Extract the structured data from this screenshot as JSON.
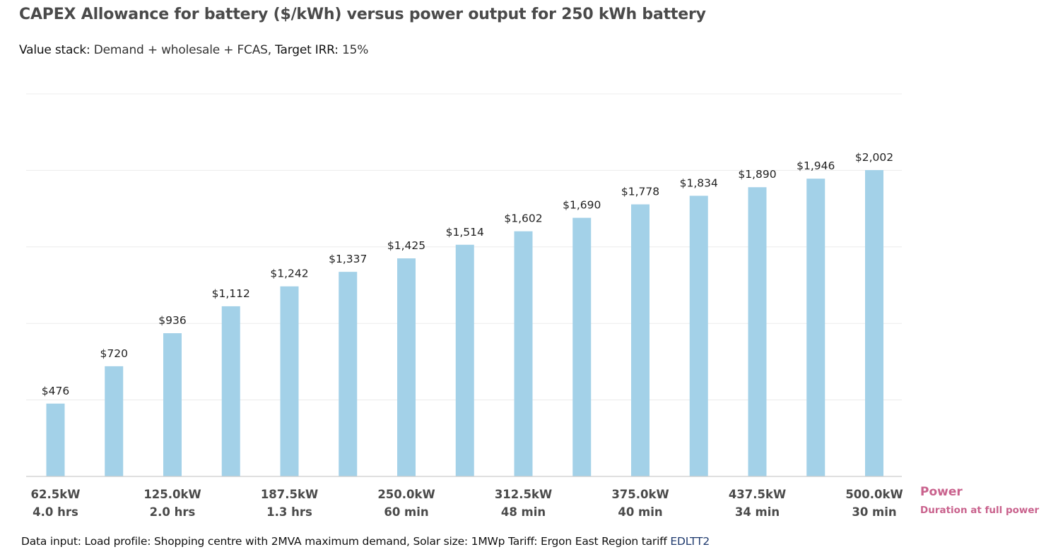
{
  "header": {
    "title": "CAPEX Allowance for battery ($/kWh) versus power output for 250 kWh battery",
    "subtitle_label1": "Value stack:",
    "subtitle_value1": " Demand + wholesale + FCAS, ",
    "subtitle_label2": "Target IRR:",
    "subtitle_value2": " 15%"
  },
  "footer": {
    "text": "Data input: Load profile: Shopping centre with 2MVA maximum demand, Solar size: 1MWp Tariff: Ergon East Region tariff ",
    "link_text": "EDLTT2"
  },
  "axis_legend": {
    "primary": "Power",
    "secondary": "Duration at full power"
  },
  "colors": {
    "bar": "#a3d1e8",
    "grid": "#ececec",
    "axis": "#cccccc",
    "legend_accent": "#c9628d"
  },
  "chart_data": {
    "type": "bar",
    "title": "CAPEX Allowance for battery ($/kWh) versus power output for 250 kWh battery",
    "xlabel": "Power",
    "xlabel_secondary": "Duration at full power",
    "ylabel": "",
    "ylim": [
      0,
      2500
    ],
    "grid": true,
    "categories": [
      "",
      "",
      "",
      "",
      "",
      "",
      "",
      "",
      "",
      "",
      "",
      "",
      "",
      "",
      ""
    ],
    "values": [
      476,
      720,
      936,
      1112,
      1242,
      1337,
      1425,
      1514,
      1602,
      1690,
      1778,
      1834,
      1890,
      1946,
      2002
    ],
    "data_labels": [
      "$476",
      "$720",
      "$936",
      "$1,112",
      "$1,242",
      "$1,337",
      "$1,425",
      "$1,514",
      "$1,602",
      "$1,690",
      "$1,778",
      "$1,834",
      "$1,890",
      "$1,946",
      "$2,002"
    ],
    "tick_labels": [
      {
        "index": 0,
        "power": "62.5kW",
        "duration": "4.0 hrs"
      },
      {
        "index": 2,
        "power": "125.0kW",
        "duration": "2.0 hrs"
      },
      {
        "index": 4,
        "power": "187.5kW",
        "duration": "1.3 hrs"
      },
      {
        "index": 6,
        "power": "250.0kW",
        "duration": "60 min"
      },
      {
        "index": 8,
        "power": "312.5kW",
        "duration": "48 min"
      },
      {
        "index": 10,
        "power": "375.0kW",
        "duration": "40 min"
      },
      {
        "index": 12,
        "power": "437.5kW",
        "duration": "34 min"
      },
      {
        "index": 14,
        "power": "500.0kW",
        "duration": "30 min"
      }
    ]
  }
}
